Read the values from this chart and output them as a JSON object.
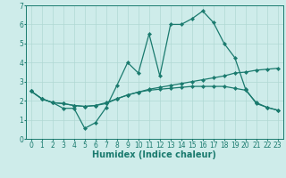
{
  "xlabel": "Humidex (Indice chaleur)",
  "bg_color": "#ceecea",
  "line_color": "#1a7a6e",
  "grid_color": "#b0d8d4",
  "xlim": [
    -0.5,
    23.5
  ],
  "ylim": [
    0,
    7
  ],
  "xticks": [
    0,
    1,
    2,
    3,
    4,
    5,
    6,
    7,
    8,
    9,
    10,
    11,
    12,
    13,
    14,
    15,
    16,
    17,
    18,
    19,
    20,
    21,
    22,
    23
  ],
  "yticks": [
    0,
    1,
    2,
    3,
    4,
    5,
    6,
    7
  ],
  "series": [
    [
      2.5,
      2.1,
      1.9,
      1.6,
      1.6,
      0.55,
      0.85,
      1.65,
      2.8,
      4.0,
      3.45,
      5.5,
      3.3,
      6.0,
      6.0,
      6.3,
      6.7,
      6.1,
      5.0,
      4.25,
      2.6,
      1.85,
      1.65,
      1.5
    ],
    [
      2.5,
      2.1,
      1.9,
      1.85,
      1.75,
      1.7,
      1.75,
      1.9,
      2.1,
      2.3,
      2.45,
      2.6,
      2.7,
      2.8,
      2.9,
      3.0,
      3.1,
      3.2,
      3.3,
      3.45,
      3.5,
      3.6,
      3.65,
      3.7
    ],
    [
      2.5,
      2.1,
      1.9,
      1.85,
      1.75,
      1.7,
      1.75,
      1.85,
      2.1,
      2.3,
      2.45,
      2.55,
      2.6,
      2.65,
      2.7,
      2.75,
      2.75,
      2.75,
      2.75,
      2.65,
      2.55,
      1.9,
      1.65,
      1.5
    ]
  ],
  "marker": "D",
  "marker_size": 2.2,
  "linewidth": 0.9,
  "xlabel_fontsize": 7,
  "tick_fontsize": 5.5
}
